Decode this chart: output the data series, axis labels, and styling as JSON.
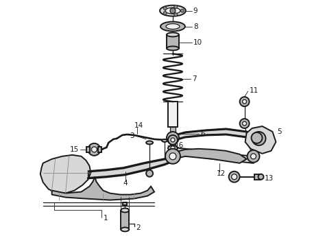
{
  "bg_color": "#ffffff",
  "line_color": "#1a1a1a",
  "fig_width": 4.9,
  "fig_height": 3.6,
  "dpi": 100,
  "label_fontsize": 7.5,
  "lw_main": 1.4,
  "lw_med": 0.9,
  "lw_thin": 0.6,
  "part_fc": "#d8d8d8",
  "part_fc2": "#b8b8b8",
  "part_fc3": "#f0f0f0",
  "white": "#ffffff"
}
